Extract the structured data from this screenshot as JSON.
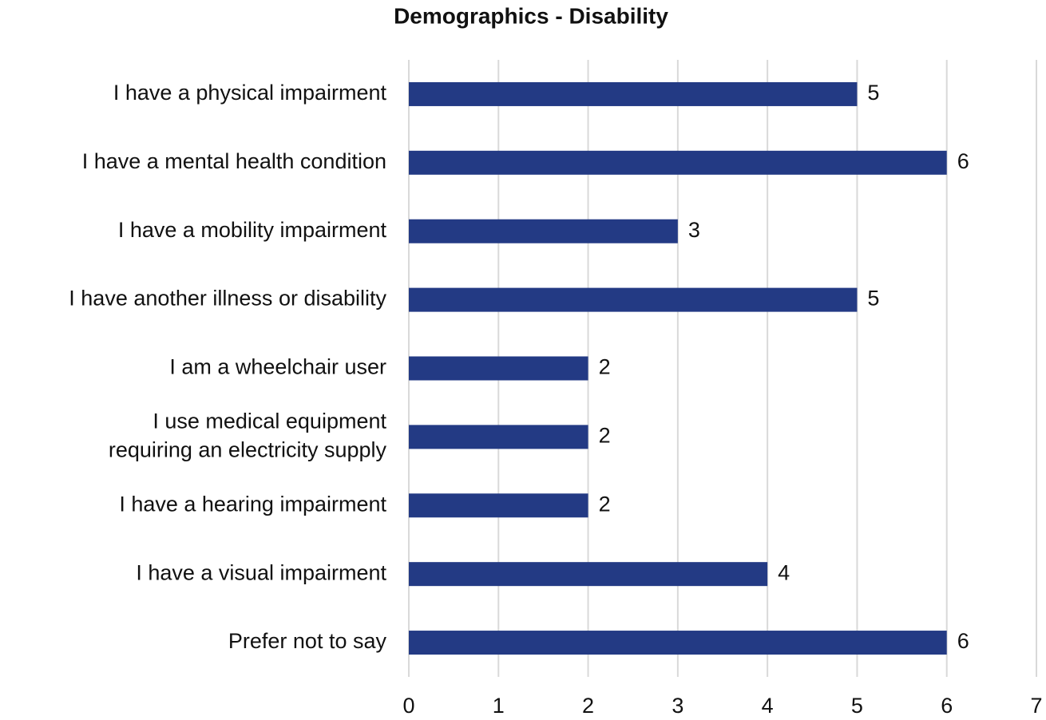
{
  "chart_data": {
    "type": "barh",
    "title": "Demographics - Disability",
    "categories": [
      "I have a physical impairment",
      "I have a mental health condition",
      "I have a mobility impairment",
      "I have another illness or disability",
      "I am a wheelchair user",
      "I use medical equipment\nrequiring an electricity supply",
      "I have a hearing impairment",
      "I have a visual impairment",
      "Prefer not to say"
    ],
    "values": [
      5,
      6,
      3,
      5,
      2,
      2,
      2,
      4,
      6
    ],
    "color": "#233a84",
    "xlim": [
      0,
      7
    ],
    "xticks": [
      0,
      1,
      2,
      3,
      4,
      5,
      6,
      7
    ],
    "grid": true
  }
}
